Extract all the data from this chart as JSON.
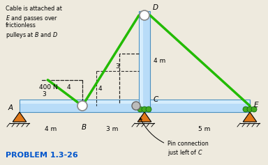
{
  "bg_color": "#eeeade",
  "beam_color": "#b8dcf8",
  "beam_outline": "#4a8fc0",
  "beam_highlight": "#e0f4ff",
  "column_color": "#b8dcf8",
  "column_outline": "#4a8fc0",
  "green_cable": "#22bb00",
  "orange_support": "#e07818",
  "green_support": "#44aa22",
  "gray_pin": "#999999",
  "title_color": "#0055cc",
  "note_text_line1": "Cable is attached at",
  "note_text_line2": "E and passes over",
  "note_text_line3": "frictionless",
  "note_text_line4": "pulleys at ",
  "note_text_line4b": "B",
  "note_text_line4c": " and ",
  "note_text_line4d": "D",
  "label_400N": "400 N",
  "problem_label": "PROBLEM 1.3-26",
  "pin_note_line1": "Pin connection",
  "pin_note_line2": "just left of ",
  "pin_note_line2b": "C"
}
